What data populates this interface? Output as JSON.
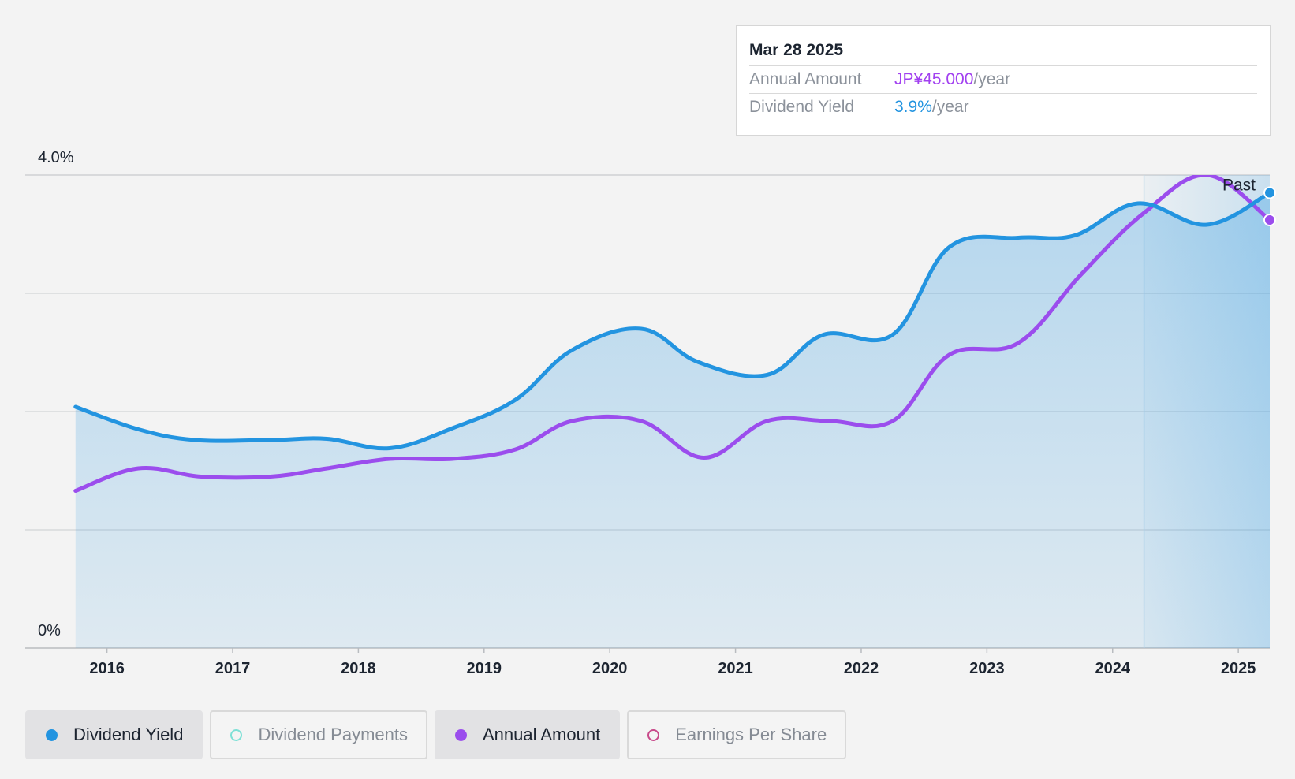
{
  "tooltip": {
    "date": "Mar 28 2025",
    "annual_label": "Annual Amount",
    "annual_value": "JP¥45.000",
    "annual_unit": "/year",
    "yield_label": "Dividend Yield",
    "yield_value": "3.9%",
    "yield_unit": "/year"
  },
  "legend": {
    "dividend_yield": "Dividend Yield",
    "dividend_payments": "Dividend Payments",
    "annual_amount": "Annual Amount",
    "earnings_per_share": "Earnings Per Share"
  },
  "colors": {
    "yield": "#2394e0",
    "annual": "#9b4ded",
    "payments": "#7ee0d6",
    "eps": "#c84a8a"
  },
  "chart_data": {
    "type": "line",
    "title": "",
    "ylim": [
      0,
      4.0
    ],
    "y_tick_labels": [
      "0%",
      "4.0%"
    ],
    "gridline_values": [
      0,
      1.0,
      2.0,
      3.0,
      4.0
    ],
    "x_ticks": [
      2016,
      2017,
      2018,
      2019,
      2020,
      2021,
      2022,
      2023,
      2024,
      2025
    ],
    "xlim": [
      2015.35,
      2025.25
    ],
    "past_label": "Past",
    "past_start": 2024.25,
    "series": [
      {
        "name": "Dividend Yield",
        "unit": "%",
        "x": [
          2015.75,
          2016.25,
          2016.7,
          2017.3,
          2017.75,
          2018.25,
          2018.75,
          2019.25,
          2019.7,
          2020.25,
          2020.7,
          2021.25,
          2021.7,
          2022.25,
          2022.7,
          2023.25,
          2023.7,
          2024.2,
          2024.75,
          2025.25
        ],
        "values": [
          2.04,
          1.85,
          1.76,
          1.76,
          1.77,
          1.69,
          1.86,
          2.1,
          2.52,
          2.7,
          2.42,
          2.31,
          2.65,
          2.65,
          3.39,
          3.47,
          3.49,
          3.76,
          3.58,
          3.85
        ]
      },
      {
        "name": "Annual Amount",
        "unit": "JP¥",
        "x": [
          2015.75,
          2016.25,
          2016.75,
          2017.3,
          2017.75,
          2018.25,
          2018.75,
          2019.25,
          2019.7,
          2020.25,
          2020.75,
          2021.25,
          2021.75,
          2022.25,
          2022.7,
          2023.25,
          2023.75,
          2024.25,
          2024.75,
          2025.25
        ],
        "values": [
          1.33,
          1.52,
          1.45,
          1.45,
          1.52,
          1.6,
          1.6,
          1.68,
          1.92,
          1.92,
          1.61,
          1.92,
          1.92,
          1.92,
          2.48,
          2.58,
          3.16,
          3.68,
          4.0,
          3.62
        ]
      }
    ]
  }
}
